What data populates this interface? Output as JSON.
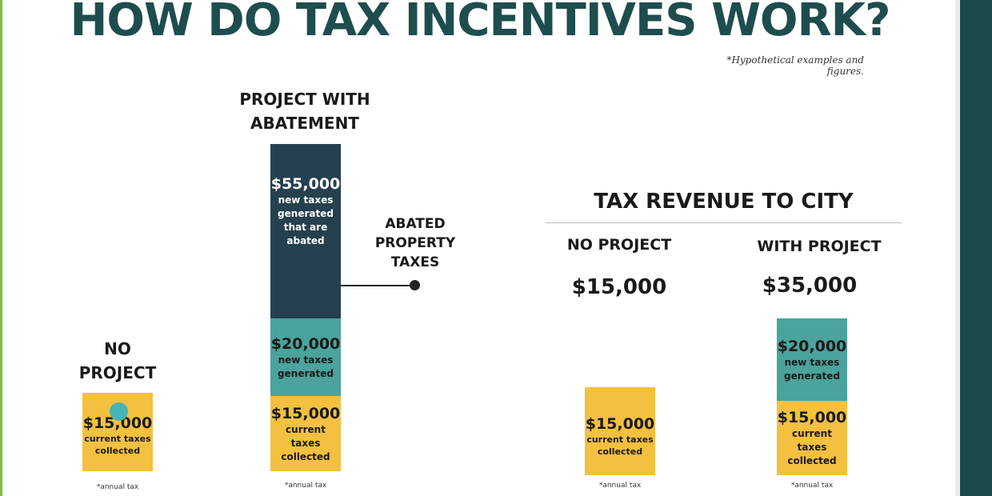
{
  "title": "HOW DO TAX INCENTIVES WORK?",
  "note": "*Hypothetical examples and figures.",
  "colors": {
    "current": "#f3c040",
    "new_generated": "#4aa39c",
    "abated": "#25404e",
    "title": "#1e4d4e"
  },
  "chart_data": [
    {
      "type": "bar",
      "stacked": true,
      "title": "",
      "categories": [
        "NO PROJECT",
        "PROJECT WITH ABATEMENT"
      ],
      "series": [
        {
          "name": "current taxes collected",
          "values": [
            15000,
            15000
          ]
        },
        {
          "name": "new taxes generated",
          "values": [
            0,
            20000
          ]
        },
        {
          "name": "new taxes generated that are abated",
          "values": [
            0,
            55000
          ]
        }
      ],
      "annotations": [
        "ABATED PROPERTY TAXES"
      ],
      "footnote": "*annual tax"
    },
    {
      "type": "bar",
      "stacked": true,
      "title": "TAX REVENUE TO CITY",
      "categories": [
        "NO PROJECT",
        "WITH PROJECT"
      ],
      "totals": [
        "$15,000",
        "$35,000"
      ],
      "series": [
        {
          "name": "current taxes collected",
          "values": [
            15000,
            15000
          ]
        },
        {
          "name": "new taxes generated",
          "values": [
            0,
            20000
          ]
        }
      ],
      "footnote": "*annual tax"
    }
  ],
  "left": {
    "no_project": {
      "label_l1": "NO",
      "label_l2": "PROJECT",
      "current_amount": "$15,000",
      "current_desc_l1": "current taxes",
      "current_desc_l2": "collected",
      "foot": "*annual tax"
    },
    "abatement": {
      "label_l1": "PROJECT WITH",
      "label_l2": "ABATEMENT",
      "abated_amount": "$55,000",
      "abated_desc_l1": "new taxes",
      "abated_desc_l2": "generated",
      "abated_desc_l3": "that are",
      "abated_desc_l4": "abated",
      "new_amount": "$20,000",
      "new_desc_l1": "new taxes",
      "new_desc_l2": "generated",
      "current_amount": "$15,000",
      "current_desc_l1": "current taxes",
      "current_desc_l2": "collected",
      "foot": "*annual tax"
    },
    "annotation_l1": "ABATED",
    "annotation_l2": "PROPERTY",
    "annotation_l3": "TAXES"
  },
  "right": {
    "title": "TAX REVENUE TO CITY",
    "no_project": {
      "label": "NO PROJECT",
      "total": "$15,000",
      "current_amount": "$15,000",
      "current_desc_l1": "current taxes",
      "current_desc_l2": "collected",
      "foot": "*annual tax"
    },
    "with_project": {
      "label": "WITH PROJECT",
      "total": "$35,000",
      "new_amount": "$20,000",
      "new_desc_l1": "new taxes",
      "new_desc_l2": "generated",
      "current_amount": "$15,000",
      "current_desc_l1": "current taxes",
      "current_desc_l2": "collected",
      "foot": "*annual tax"
    }
  }
}
